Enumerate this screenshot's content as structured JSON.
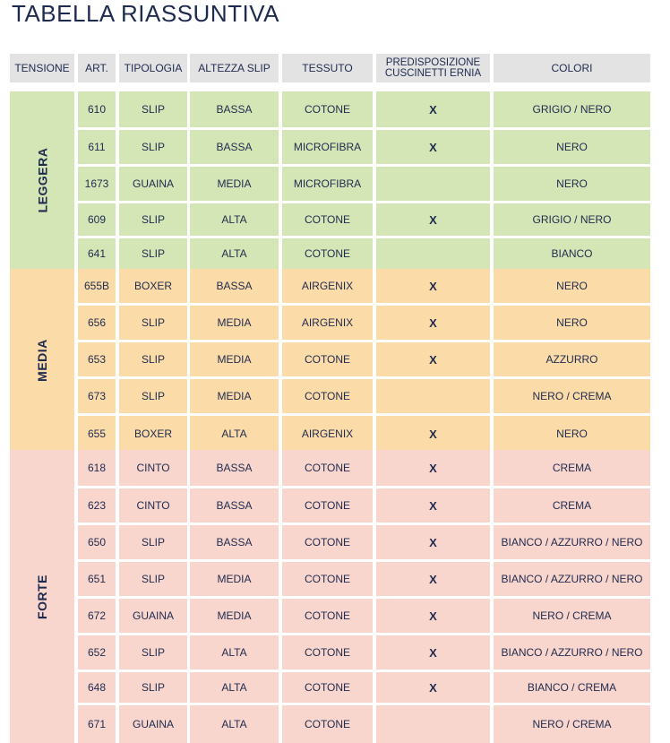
{
  "title": "TABELLA RIASSUNTIVA",
  "headers": [
    "TENSIONE",
    "ART.",
    "TIPOLOGIA",
    "ALTEZZA SLIP",
    "TESSUTO",
    "PREDISPOSIZIONE CUSCINETTI ERNIA",
    "COLORI"
  ],
  "colors": {
    "leggera": "#d4e6b6",
    "media": "#fbdca8",
    "forte": "#f8d6cd",
    "header": "#e3e3e3",
    "text": "#1f2a4f"
  },
  "groups": [
    {
      "name": "LEGGERA",
      "rows": [
        {
          "art": "610",
          "tipologia": "SLIP",
          "altezza": "BASSA",
          "tessuto": "COTONE",
          "ernia": "X",
          "colori": "GRIGIO / NERO"
        },
        {
          "art": "611",
          "tipologia": "SLIP",
          "altezza": "BASSA",
          "tessuto": "MICROFIBRA",
          "ernia": "X",
          "colori": "NERO"
        },
        {
          "art": "1673",
          "tipologia": "GUAINA",
          "altezza": "MEDIA",
          "tessuto": "MICROFIBRA",
          "ernia": "",
          "colori": "NERO"
        },
        {
          "art": "609",
          "tipologia": "SLIP",
          "altezza": "ALTA",
          "tessuto": "COTONE",
          "ernia": "X",
          "colori": "GRIGIO / NERO"
        },
        {
          "art": "641",
          "tipologia": "SLIP",
          "altezza": "ALTA",
          "tessuto": "COTONE",
          "ernia": "",
          "colori": "BIANCO"
        }
      ]
    },
    {
      "name": "MEDIA",
      "rows": [
        {
          "art": "655B",
          "tipologia": "BOXER",
          "altezza": "BASSA",
          "tessuto": "AIRGENIX",
          "ernia": "X",
          "colori": "NERO"
        },
        {
          "art": "656",
          "tipologia": "SLIP",
          "altezza": "MEDIA",
          "tessuto": "AIRGENIX",
          "ernia": "X",
          "colori": "NERO"
        },
        {
          "art": "653",
          "tipologia": "SLIP",
          "altezza": "MEDIA",
          "tessuto": "COTONE",
          "ernia": "X",
          "colori": "AZZURRO"
        },
        {
          "art": "673",
          "tipologia": "SLIP",
          "altezza": "MEDIA",
          "tessuto": "COTONE",
          "ernia": "",
          "colori": "NERO / CREMA"
        },
        {
          "art": "655",
          "tipologia": "BOXER",
          "altezza": "ALTA",
          "tessuto": "AIRGENIX",
          "ernia": "X",
          "colori": "NERO"
        }
      ]
    },
    {
      "name": "FORTE",
      "rows": [
        {
          "art": "618",
          "tipologia": "CINTO",
          "altezza": "BASSA",
          "tessuto": "COTONE",
          "ernia": "X",
          "colori": "CREMA"
        },
        {
          "art": "623",
          "tipologia": "CINTO",
          "altezza": "BASSA",
          "tessuto": "COTONE",
          "ernia": "X",
          "colori": "CREMA"
        },
        {
          "art": "650",
          "tipologia": "SLIP",
          "altezza": "BASSA",
          "tessuto": "COTONE",
          "ernia": "X",
          "colori": "BIANCO / AZZURRO / NERO"
        },
        {
          "art": "651",
          "tipologia": "SLIP",
          "altezza": "MEDIA",
          "tessuto": "COTONE",
          "ernia": "X",
          "colori": "BIANCO / AZZURRO / NERO"
        },
        {
          "art": "672",
          "tipologia": "GUAINA",
          "altezza": "MEDIA",
          "tessuto": "COTONE",
          "ernia": "X",
          "colori": "NERO / CREMA"
        },
        {
          "art": "652",
          "tipologia": "SLIP",
          "altezza": "ALTA",
          "tessuto": "COTONE",
          "ernia": "X",
          "colori": "BIANCO / AZZURRO / NERO"
        },
        {
          "art": "648",
          "tipologia": "SLIP",
          "altezza": "ALTA",
          "tessuto": "COTONE",
          "ernia": "X",
          "colori": "BIANCO / CREMA"
        },
        {
          "art": "671",
          "tipologia": "GUAINA",
          "altezza": "ALTA",
          "tessuto": "COTONE",
          "ernia": "",
          "colori": "NERO / CREMA"
        }
      ]
    }
  ]
}
